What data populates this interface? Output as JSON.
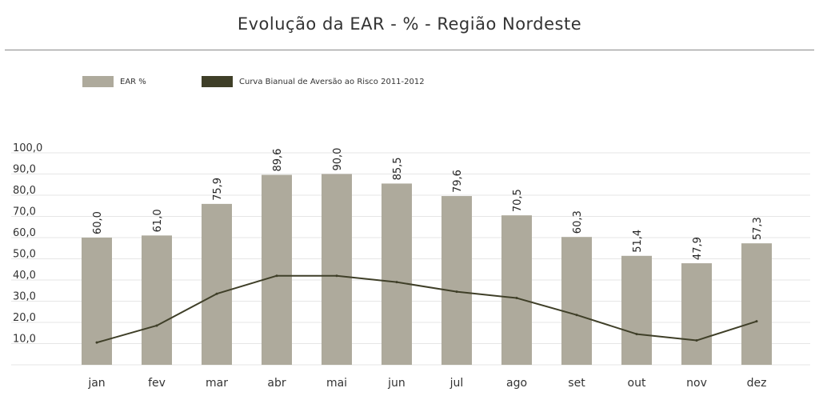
{
  "chart_data": {
    "type": "bar",
    "title": "Evolução da EAR - % - Região Nordeste",
    "categories": [
      "jan",
      "fev",
      "mar",
      "abr",
      "mai",
      "jun",
      "jul",
      "ago",
      "set",
      "out",
      "nov",
      "dez"
    ],
    "series": [
      {
        "name": "EAR %",
        "type": "bar",
        "color": "#aeaa9c",
        "values": [
          60.0,
          61.0,
          75.9,
          89.6,
          90.0,
          85.5,
          79.6,
          70.5,
          60.3,
          51.4,
          47.9,
          57.3
        ],
        "labels": [
          "60,0",
          "61,0",
          "75,9",
          "89,6",
          "90,0",
          "85,5",
          "79,6",
          "70,5",
          "60,3",
          "51,4",
          "47,9",
          "57,3"
        ]
      },
      {
        "name": "Curva Bianual de Aversão ao Risco 2011-2012",
        "type": "line",
        "color": "#3f3f28",
        "values": [
          10.5,
          18.5,
          33.5,
          42.0,
          42.0,
          39.0,
          34.5,
          31.5,
          23.5,
          14.5,
          11.5,
          20.5
        ]
      }
    ],
    "ylim": [
      0,
      100
    ],
    "yticks": [
      10,
      20,
      30,
      40,
      50,
      60,
      70,
      80,
      90,
      100
    ],
    "ytick_labels": [
      "10,0",
      "20,0",
      "30,0",
      "40,0",
      "50,0",
      "60,0",
      "70,0",
      "80,0",
      "90,0",
      "100,0"
    ],
    "xlabel": "",
    "ylabel": "",
    "grid": true,
    "legend": "top-left"
  }
}
